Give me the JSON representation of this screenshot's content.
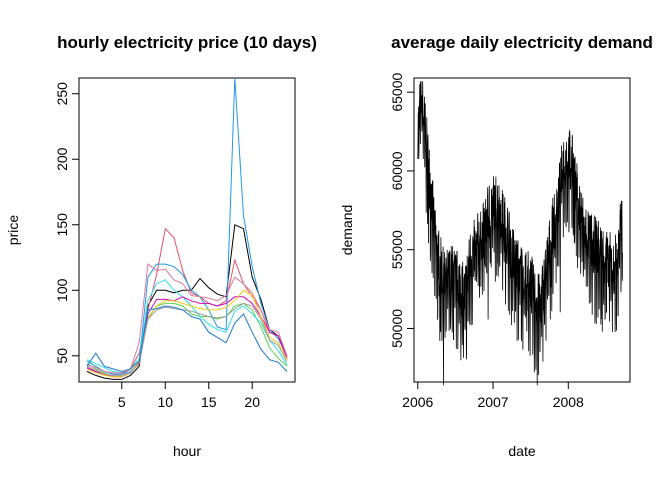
{
  "chart_data": [
    {
      "type": "line",
      "title": "hourly electricity price (10 days)",
      "xlabel": "hour",
      "ylabel": "price",
      "xlim": [
        1,
        24
      ],
      "ylim": [
        30,
        262
      ],
      "xticks": [
        5,
        10,
        15,
        20
      ],
      "yticks": [
        50,
        100,
        150,
        200,
        250
      ],
      "grid": false,
      "legend": "none",
      "x": [
        1,
        2,
        3,
        4,
        5,
        6,
        7,
        8,
        9,
        10,
        11,
        12,
        13,
        14,
        15,
        16,
        17,
        18,
        19,
        20,
        21,
        22,
        23,
        24
      ],
      "series": [
        {
          "color": "#000000",
          "values": [
            38,
            35,
            33,
            32,
            32,
            35,
            42,
            88,
            100,
            100,
            98,
            100,
            100,
            109,
            102,
            97,
            95,
            150,
            147,
            110,
            93,
            70,
            65,
            50
          ]
        },
        {
          "color": "#DF536B",
          "values": [
            40,
            38,
            36,
            35,
            36,
            40,
            52,
            85,
            112,
            147,
            140,
            115,
            98,
            95,
            90,
            88,
            92,
            123,
            105,
            95,
            85,
            68,
            65,
            48
          ]
        },
        {
          "color": "#61D04F",
          "values": [
            44,
            40,
            37,
            34,
            34,
            37,
            46,
            79,
            88,
            90,
            90,
            88,
            82,
            80,
            80,
            78,
            80,
            88,
            90,
            85,
            72,
            56,
            48,
            42
          ]
        },
        {
          "color": "#2297E6",
          "values": [
            46,
            42,
            38,
            36,
            36,
            38,
            45,
            110,
            120,
            120,
            118,
            112,
            100,
            95,
            85,
            72,
            70,
            262,
            157,
            118,
            90,
            70,
            63,
            50
          ]
        },
        {
          "color": "#28E2E5",
          "values": [
            47,
            44,
            41,
            38,
            37,
            40,
            48,
            92,
            105,
            108,
            100,
            95,
            88,
            80,
            74,
            70,
            68,
            84,
            88,
            82,
            75,
            62,
            54,
            43
          ]
        },
        {
          "color": "#CD0BBC",
          "values": [
            41,
            38,
            36,
            34,
            34,
            37,
            45,
            82,
            93,
            93,
            92,
            95,
            92,
            90,
            90,
            88,
            90,
            95,
            95,
            90,
            80,
            68,
            65,
            48
          ]
        },
        {
          "color": "#F5C710",
          "values": [
            40,
            37,
            35,
            34,
            34,
            37,
            46,
            78,
            88,
            92,
            92,
            90,
            88,
            86,
            85,
            85,
            87,
            92,
            100,
            96,
            80,
            64,
            60,
            47
          ]
        },
        {
          "color": "#9E9E9E",
          "values": [
            42,
            39,
            36,
            35,
            35,
            37,
            44,
            78,
            85,
            87,
            86,
            85,
            84,
            82,
            80,
            79,
            80,
            86,
            90,
            88,
            78,
            62,
            58,
            45
          ]
        },
        {
          "color": "#E07A9A",
          "values": [
            43,
            41,
            38,
            37,
            37,
            40,
            60,
            120,
            115,
            116,
            108,
            105,
            96,
            95,
            94,
            92,
            96,
            110,
            105,
            98,
            85,
            70,
            68,
            50
          ]
        },
        {
          "color": "#1F78D1",
          "values": [
            42,
            52,
            42,
            40,
            38,
            40,
            46,
            85,
            86,
            88,
            87,
            85,
            80,
            78,
            68,
            64,
            60,
            75,
            82,
            68,
            55,
            47,
            45,
            38
          ]
        }
      ]
    },
    {
      "type": "line",
      "title": "average daily electricity demand",
      "xlabel": "date",
      "ylabel": "demand",
      "xlim": [
        2005.95,
        2008.82
      ],
      "ylim": [
        46600,
        65900
      ],
      "xticks": [
        2006,
        2007,
        2008
      ],
      "yticks": [
        50000,
        55000,
        60000,
        65000
      ],
      "grid": false,
      "legend": "none",
      "date_range": [
        2006.0,
        2008.72
      ],
      "series": [
        {
          "color": "#000000",
          "anchors": [
            [
              2006.0,
              62000
            ],
            [
              2006.05,
              64500
            ],
            [
              2006.08,
              63000
            ],
            [
              2006.12,
              61000
            ],
            [
              2006.18,
              58000
            ],
            [
              2006.25,
              54500
            ],
            [
              2006.35,
              52500
            ],
            [
              2006.45,
              53000
            ],
            [
              2006.55,
              52500
            ],
            [
              2006.62,
              51500
            ],
            [
              2006.7,
              54000
            ],
            [
              2006.8,
              55000
            ],
            [
              2006.9,
              56000
            ],
            [
              2006.98,
              57500
            ],
            [
              2007.05,
              57500
            ],
            [
              2007.12,
              56500
            ],
            [
              2007.2,
              55500
            ],
            [
              2007.3,
              53500
            ],
            [
              2007.4,
              53000
            ],
            [
              2007.5,
              52500
            ],
            [
              2007.55,
              51500
            ],
            [
              2007.62,
              51000
            ],
            [
              2007.7,
              53000
            ],
            [
              2007.78,
              55500
            ],
            [
              2007.86,
              57500
            ],
            [
              2007.93,
              60000
            ],
            [
              2008.0,
              60500
            ],
            [
              2008.05,
              60000
            ],
            [
              2008.12,
              58000
            ],
            [
              2008.2,
              56000
            ],
            [
              2008.3,
              55000
            ],
            [
              2008.4,
              54500
            ],
            [
              2008.5,
              54000
            ],
            [
              2008.6,
              53500
            ],
            [
              2008.66,
              54000
            ],
            [
              2008.72,
              57000
            ]
          ],
          "noise": 2300,
          "min": 46400,
          "max": 65700
        }
      ]
    }
  ]
}
